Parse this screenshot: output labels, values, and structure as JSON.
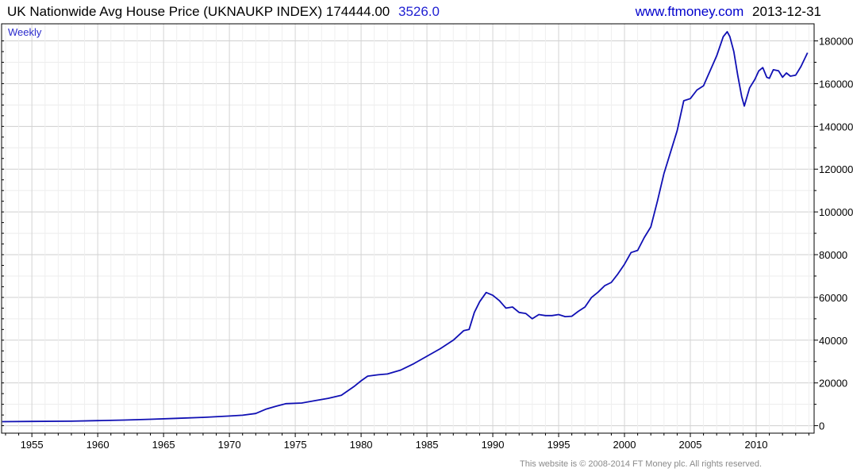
{
  "header": {
    "title": "UK Nationwide Avg House Price (UKNAUKP INDEX)",
    "last_value": "174444.00",
    "change": "3526.0",
    "site": "www.ftmoney.com",
    "date": "2013-12-31"
  },
  "footer": {
    "copyright": "This website is © 2008-2014 FT Money plc. All rights reserved."
  },
  "colors": {
    "line": "#1010b4",
    "grid": "#d8d8d8",
    "frame": "#000000",
    "accent": "#0000cc",
    "label": "#2a2acc"
  },
  "chart_data": {
    "type": "line",
    "title": "UK Nationwide Avg House Price (UKNAUKP INDEX)",
    "period_label": "Weekly",
    "xlabel": "",
    "ylabel": "",
    "xlim": [
      1952.7,
      2014.4
    ],
    "ylim": [
      -3500,
      188000
    ],
    "x_ticks": [
      1955,
      1960,
      1965,
      1970,
      1975,
      1980,
      1985,
      1990,
      1995,
      2000,
      2005,
      2010
    ],
    "y_ticks": [
      0,
      20000,
      40000,
      60000,
      80000,
      100000,
      120000,
      140000,
      160000,
      180000
    ],
    "grid": true,
    "series": [
      {
        "points": [
          [
            1952.75,
            1890
          ],
          [
            1955,
            1980
          ],
          [
            1958,
            2100
          ],
          [
            1960,
            2350
          ],
          [
            1962,
            2640
          ],
          [
            1964,
            3000
          ],
          [
            1966,
            3450
          ],
          [
            1968,
            3900
          ],
          [
            1970,
            4500
          ],
          [
            1971,
            4900
          ],
          [
            1972,
            5700
          ],
          [
            1972.8,
            7800
          ],
          [
            1973.5,
            9000
          ],
          [
            1974.3,
            10300
          ],
          [
            1975.5,
            10600
          ],
          [
            1976.5,
            11700
          ],
          [
            1977.5,
            12800
          ],
          [
            1978.5,
            14200
          ],
          [
            1979.5,
            18500
          ],
          [
            1980,
            21000
          ],
          [
            1980.5,
            23200
          ],
          [
            1981.3,
            23800
          ],
          [
            1982,
            24200
          ],
          [
            1983,
            26000
          ],
          [
            1984,
            29000
          ],
          [
            1985,
            32500
          ],
          [
            1986,
            36000
          ],
          [
            1987,
            40000
          ],
          [
            1987.8,
            44500
          ],
          [
            1988.2,
            45000
          ],
          [
            1988.6,
            53000
          ],
          [
            1989,
            58000
          ],
          [
            1989.5,
            62300
          ],
          [
            1990,
            61000
          ],
          [
            1990.5,
            58500
          ],
          [
            1991,
            55000
          ],
          [
            1991.5,
            55500
          ],
          [
            1992,
            53000
          ],
          [
            1992.5,
            52500
          ],
          [
            1993,
            50000
          ],
          [
            1993.5,
            52000
          ],
          [
            1994,
            51500
          ],
          [
            1994.5,
            51500
          ],
          [
            1995,
            52000
          ],
          [
            1995.5,
            51000
          ],
          [
            1996,
            51200
          ],
          [
            1996.5,
            53500
          ],
          [
            1997,
            55500
          ],
          [
            1997.5,
            60000
          ],
          [
            1998,
            62500
          ],
          [
            1998.5,
            65500
          ],
          [
            1999,
            67000
          ],
          [
            1999.5,
            71000
          ],
          [
            2000,
            75500
          ],
          [
            2000.5,
            81000
          ],
          [
            2001,
            82000
          ],
          [
            2001.5,
            88000
          ],
          [
            2002,
            93000
          ],
          [
            2002.5,
            105000
          ],
          [
            2003,
            118000
          ],
          [
            2003.5,
            128000
          ],
          [
            2004,
            138000
          ],
          [
            2004.5,
            152000
          ],
          [
            2005,
            153000
          ],
          [
            2005.5,
            157000
          ],
          [
            2006,
            159000
          ],
          [
            2006.5,
            166000
          ],
          [
            2007,
            173000
          ],
          [
            2007.5,
            182000
          ],
          [
            2007.8,
            184300
          ],
          [
            2008,
            182000
          ],
          [
            2008.3,
            175000
          ],
          [
            2008.6,
            164000
          ],
          [
            2008.9,
            154000
          ],
          [
            2009.1,
            149500
          ],
          [
            2009.5,
            158000
          ],
          [
            2009.9,
            162000
          ],
          [
            2010.2,
            166000
          ],
          [
            2010.5,
            167500
          ],
          [
            2010.8,
            163000
          ],
          [
            2011,
            162500
          ],
          [
            2011.3,
            166500
          ],
          [
            2011.7,
            166000
          ],
          [
            2012,
            163000
          ],
          [
            2012.3,
            165000
          ],
          [
            2012.6,
            163500
          ],
          [
            2013,
            164000
          ],
          [
            2013.4,
            168000
          ],
          [
            2013.9,
            174444
          ]
        ]
      }
    ]
  }
}
